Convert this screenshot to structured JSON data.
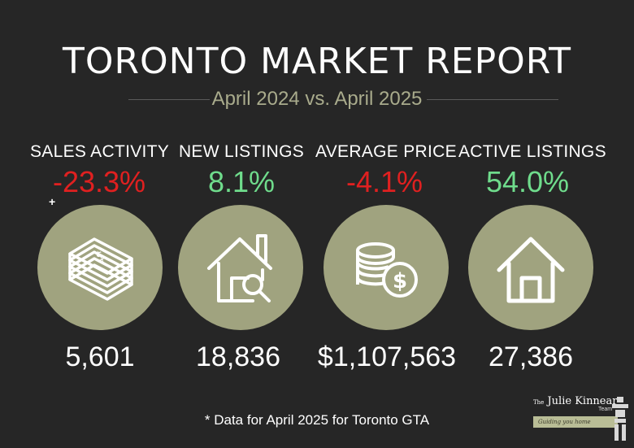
{
  "header": {
    "title": "TORONTO MARKET REPORT",
    "subtitle": "April 2024 vs. April 2025"
  },
  "stats": [
    {
      "label": "SALES ACTIVITY",
      "change": "-23.3%",
      "trend": "negative",
      "icon": "money-stack-icon",
      "value": "5,601"
    },
    {
      "label": "NEW LISTINGS",
      "change": "8.1%",
      "trend": "positive",
      "icon": "house-search-icon",
      "value": "18,836"
    },
    {
      "label": "AVERAGE PRICE",
      "change": "-4.1%",
      "trend": "negative",
      "icon": "coins-dollar-icon",
      "value": "$1,107,563"
    },
    {
      "label": "ACTIVE LISTINGS",
      "change": "54.0%",
      "trend": "positive",
      "icon": "house-icon",
      "value": "27,386"
    }
  ],
  "marker": "+",
  "footnote": "* Data for April 2025 for Toronto GTA",
  "logo": {
    "brand": "Julie Kinnear",
    "prefix": "The",
    "team": "Team",
    "tagline": "Guiding you home"
  },
  "colors": {
    "background": "#262626",
    "circle": "#a0a37f",
    "subtitle": "#a9ab8c",
    "negative": "#e02020",
    "positive": "#6fdc8c"
  }
}
